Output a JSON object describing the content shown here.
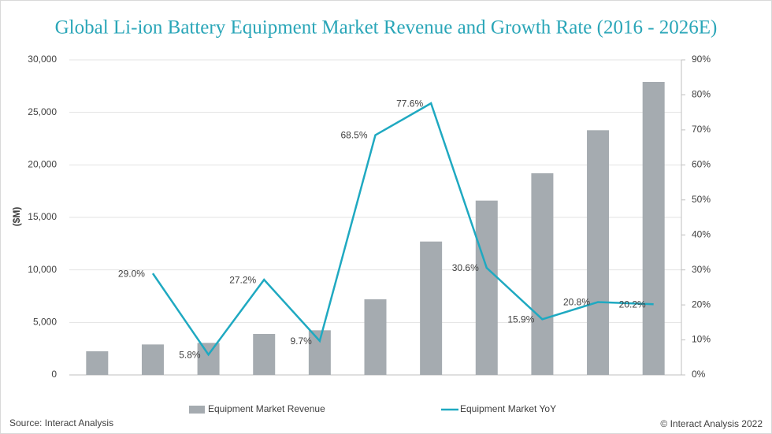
{
  "chart_data": {
    "type": "bar",
    "title": "Global Li-ion Battery Equipment Market Revenue and Growth Rate (2016 - 2026E)",
    "y_label": "($M)",
    "source": "Source: Interact Analysis",
    "copyright": "© Interact Analysis 2022",
    "categories": [
      null,
      null,
      null,
      null,
      null,
      null,
      null,
      null,
      null,
      null,
      null
    ],
    "series": [
      {
        "name": "Equipment Market Revenue",
        "type": "bar",
        "color": "#a5abb0",
        "values": [
          2250,
          2900,
          3050,
          3900,
          4250,
          7200,
          12700,
          16600,
          19200,
          23300,
          27900
        ]
      },
      {
        "name": "Equipment Market YoY",
        "type": "line",
        "axis": "y2",
        "color": "#1fa9c1",
        "values": [
          null,
          29.0,
          5.8,
          27.2,
          9.7,
          68.5,
          77.6,
          30.6,
          15.9,
          20.8,
          20.2
        ],
        "value_labels": [
          null,
          "29.0%",
          "5.8%",
          "27.2%",
          "9.7%",
          "68.5%",
          "77.6%",
          "30.6%",
          "15.9%",
          "20.8%",
          "20.2%"
        ]
      }
    ],
    "ylim": [
      0,
      30000
    ],
    "yticks": [
      0,
      {
        "value": 5000,
        "label": "5,000"
      },
      {
        "value": 10000,
        "label": "10,000"
      },
      {
        "value": 15000,
        "label": "15,000"
      },
      {
        "value": 20000,
        "label": "20,000"
      },
      {
        "value": 25000,
        "label": "25,000"
      },
      {
        "value": 30000,
        "label": "30,000"
      }
    ],
    "y2lim": [
      0,
      90
    ],
    "y2ticks": [
      {
        "value": 0,
        "label": "0%"
      },
      {
        "value": 10,
        "label": "10%"
      },
      {
        "value": 20,
        "label": "20%"
      },
      {
        "value": 30,
        "label": "30%"
      },
      {
        "value": 40,
        "label": "40%"
      },
      {
        "value": 50,
        "label": "50%"
      },
      {
        "value": 60,
        "label": "60%"
      },
      {
        "value": 70,
        "label": "70%"
      },
      {
        "value": 80,
        "label": "80%"
      },
      {
        "value": 90,
        "label": "90%"
      }
    ],
    "grid": true,
    "legend": "bottom"
  }
}
